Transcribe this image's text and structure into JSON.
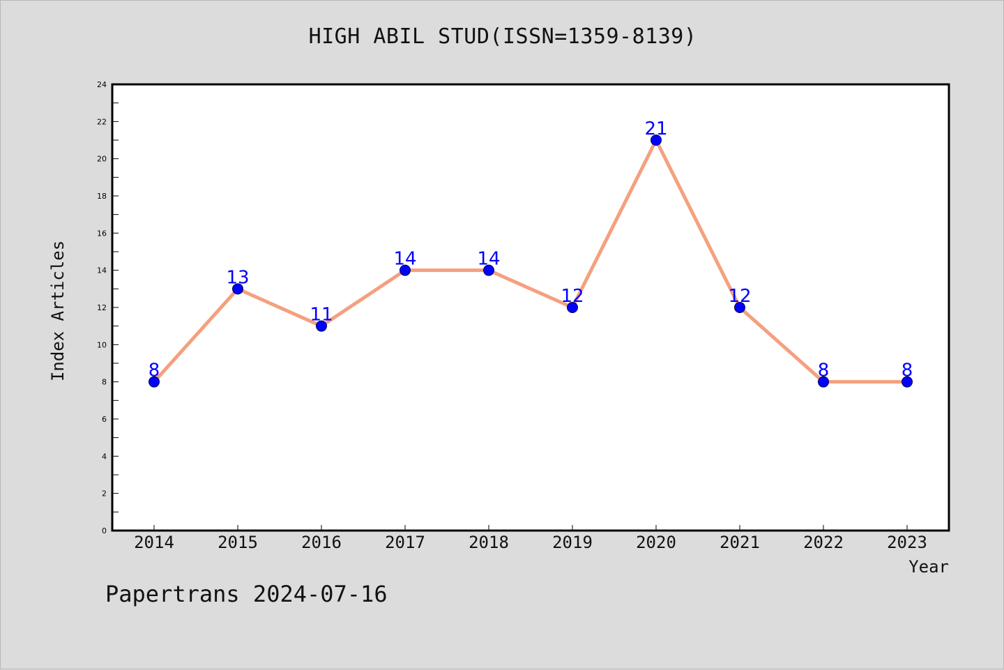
{
  "chart_data": {
    "type": "line",
    "title": "HIGH ABIL STUD(ISSN=1359-8139)",
    "xlabel": "Year",
    "ylabel": "Index Articles",
    "categories": [
      "2014",
      "2015",
      "2016",
      "2017",
      "2018",
      "2019",
      "2020",
      "2021",
      "2022",
      "2023"
    ],
    "series": [
      {
        "values": [
          8,
          13,
          11,
          14,
          14,
          12,
          21,
          12,
          8,
          8
        ]
      }
    ],
    "ylim": [
      0,
      24
    ],
    "yticks": [
      0,
      2,
      4,
      6,
      8,
      10,
      12,
      14,
      16,
      18,
      20,
      22,
      24
    ],
    "grid": false,
    "data_labels": true
  },
  "footer": {
    "note": "Papertrans 2024-07-16"
  },
  "colors": {
    "background": "#dcdcdc",
    "plot_area": "#ffffff",
    "line": "#f4a07f",
    "marker": "#0000ff",
    "data_label": "#0000ff"
  }
}
